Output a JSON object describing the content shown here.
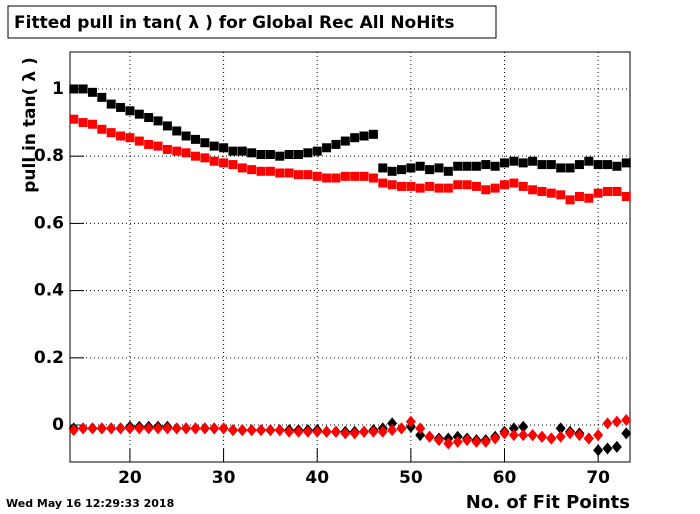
{
  "chart_data": {
    "type": "scatter",
    "title": "Fitted pull in tan( λ ) for Global Rec All NoHits",
    "ylabel": "pull in tan( λ )",
    "xlabel": "No. of Fit Points",
    "timestamp": "Wed May 16 12:29:33 2018",
    "xlim": [
      13.6,
      73.4
    ],
    "ylim": [
      -0.11,
      1.11
    ],
    "xticks": [
      20,
      30,
      40,
      50,
      60,
      70
    ],
    "yticks": [
      0,
      0.2,
      0.4,
      0.6,
      0.8,
      1
    ],
    "grid": true,
    "x": [
      14,
      15,
      16,
      17,
      18,
      19,
      20,
      21,
      22,
      23,
      24,
      25,
      26,
      27,
      28,
      29,
      30,
      31,
      32,
      33,
      34,
      35,
      36,
      37,
      38,
      39,
      40,
      41,
      42,
      43,
      44,
      45,
      46,
      47,
      48,
      49,
      50,
      51,
      52,
      53,
      54,
      55,
      56,
      57,
      58,
      59,
      60,
      61,
      62,
      63,
      64,
      65,
      66,
      67,
      68,
      69,
      70,
      71,
      72,
      73
    ],
    "series": [
      {
        "color": "#000000",
        "marker": "square",
        "values": [
          1.0,
          1.0,
          0.99,
          0.975,
          0.955,
          0.945,
          0.935,
          0.925,
          0.915,
          0.905,
          0.89,
          0.875,
          0.86,
          0.85,
          0.84,
          0.83,
          0.825,
          0.815,
          0.815,
          0.81,
          0.805,
          0.805,
          0.8,
          0.805,
          0.805,
          0.81,
          0.815,
          0.825,
          0.835,
          0.845,
          0.855,
          0.86,
          0.865,
          0.765,
          0.755,
          0.76,
          0.765,
          0.77,
          0.76,
          0.765,
          0.755,
          0.77,
          0.77,
          0.77,
          0.775,
          0.77,
          0.78,
          0.785,
          0.78,
          0.785,
          0.775,
          0.775,
          0.765,
          0.765,
          0.775,
          0.785,
          0.775,
          0.775,
          0.77,
          0.78
        ]
      },
      {
        "color": "#ff0000",
        "marker": "square",
        "values": [
          0.91,
          0.9,
          0.895,
          0.88,
          0.87,
          0.86,
          0.855,
          0.845,
          0.835,
          0.83,
          0.82,
          0.815,
          0.81,
          0.8,
          0.795,
          0.785,
          0.78,
          0.775,
          0.765,
          0.76,
          0.755,
          0.755,
          0.75,
          0.75,
          0.745,
          0.745,
          0.74,
          0.735,
          0.735,
          0.74,
          0.74,
          0.74,
          0.735,
          0.72,
          0.715,
          0.71,
          0.71,
          0.705,
          0.71,
          0.705,
          0.705,
          0.715,
          0.715,
          0.71,
          0.7,
          0.705,
          0.715,
          0.72,
          0.71,
          0.7,
          0.695,
          0.69,
          0.685,
          0.67,
          0.68,
          0.675,
          0.69,
          0.695,
          0.695,
          0.68
        ]
      },
      {
        "color": "#000000",
        "marker": "diamond",
        "values": [
          -0.01,
          -0.01,
          -0.01,
          -0.01,
          -0.01,
          -0.01,
          -0.005,
          -0.005,
          -0.005,
          -0.005,
          -0.005,
          -0.01,
          -0.01,
          -0.01,
          -0.01,
          -0.01,
          -0.01,
          -0.015,
          -0.015,
          -0.015,
          -0.015,
          -0.015,
          -0.015,
          -0.015,
          -0.015,
          -0.015,
          -0.015,
          -0.02,
          -0.02,
          -0.02,
          -0.02,
          -0.02,
          -0.015,
          -0.01,
          0.005,
          -0.01,
          -0.005,
          -0.03,
          -0.035,
          -0.04,
          -0.04,
          -0.035,
          -0.04,
          -0.045,
          -0.045,
          -0.035,
          -0.02,
          -0.01,
          -0.005,
          -0.03,
          -0.035,
          -0.04,
          -0.01,
          -0.02,
          -0.025,
          -0.04,
          -0.075,
          -0.07,
          -0.065,
          -0.025
        ]
      },
      {
        "color": "#ff0000",
        "marker": "diamond",
        "values": [
          -0.015,
          -0.01,
          -0.01,
          -0.01,
          -0.01,
          -0.01,
          -0.01,
          -0.01,
          -0.01,
          -0.01,
          -0.01,
          -0.01,
          -0.01,
          -0.01,
          -0.01,
          -0.01,
          -0.01,
          -0.015,
          -0.015,
          -0.015,
          -0.015,
          -0.015,
          -0.015,
          -0.02,
          -0.02,
          -0.02,
          -0.02,
          -0.02,
          -0.02,
          -0.025,
          -0.025,
          -0.02,
          -0.02,
          -0.02,
          -0.015,
          -0.01,
          0.01,
          -0.01,
          -0.035,
          -0.045,
          -0.055,
          -0.05,
          -0.045,
          -0.05,
          -0.05,
          -0.04,
          -0.025,
          -0.03,
          -0.03,
          -0.03,
          -0.035,
          -0.04,
          -0.035,
          -0.025,
          -0.03,
          -0.04,
          -0.03,
          0.005,
          0.01,
          0.015
        ]
      }
    ]
  }
}
